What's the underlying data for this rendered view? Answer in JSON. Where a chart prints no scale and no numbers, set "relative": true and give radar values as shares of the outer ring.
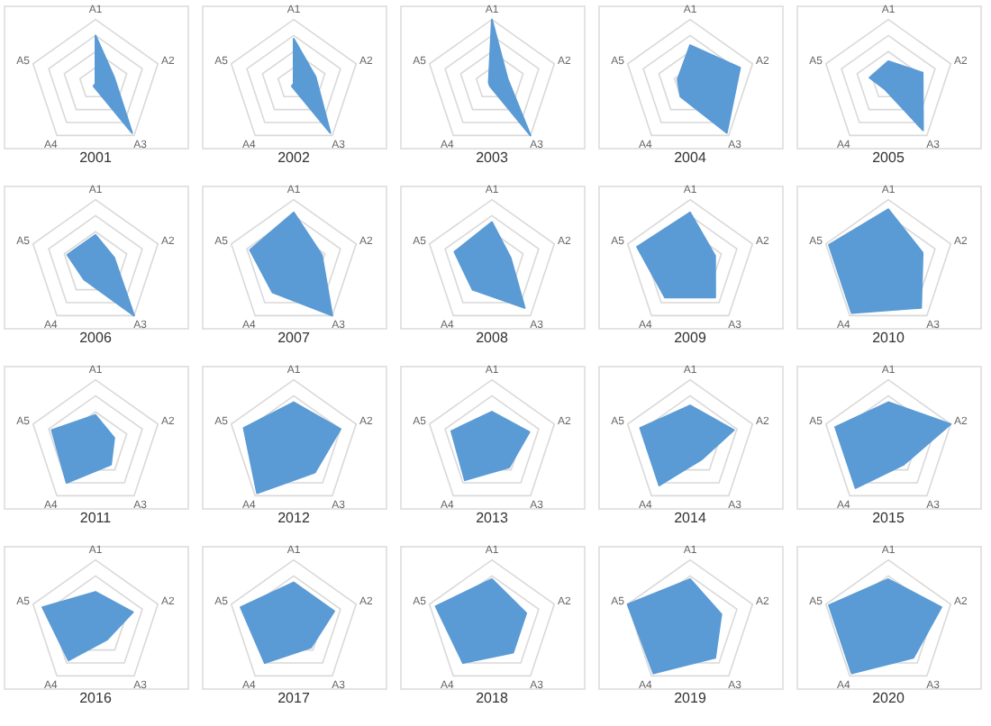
{
  "chart_data": [
    {
      "type": "radar",
      "title": "2001",
      "categories": [
        "A1",
        "A2",
        "A3",
        "A4",
        "A5"
      ],
      "relative": true,
      "grid": true,
      "series": [
        {
          "color": "#5b9bd5",
          "values": [
            0.75,
            0.3,
            0.95,
            0.05,
            0.0
          ]
        }
      ]
    },
    {
      "type": "radar",
      "title": "2002",
      "categories": [
        "A1",
        "A2",
        "A3",
        "A4",
        "A5"
      ],
      "relative": true,
      "grid": true,
      "series": [
        {
          "color": "#5b9bd5",
          "values": [
            0.7,
            0.35,
            0.95,
            0.05,
            0.0
          ]
        }
      ]
    },
    {
      "type": "radar",
      "title": "2003",
      "categories": [
        "A1",
        "A2",
        "A3",
        "A4",
        "A5"
      ],
      "relative": true,
      "grid": true,
      "series": [
        {
          "color": "#5b9bd5",
          "values": [
            1.0,
            0.25,
            1.0,
            0.05,
            0.05
          ]
        }
      ]
    },
    {
      "type": "radar",
      "title": "2004",
      "categories": [
        "A1",
        "A2",
        "A3",
        "A4",
        "A5"
      ],
      "relative": true,
      "grid": true,
      "series": [
        {
          "color": "#5b9bd5",
          "values": [
            0.6,
            0.8,
            0.95,
            0.25,
            0.2
          ]
        }
      ]
    },
    {
      "type": "radar",
      "title": "2005",
      "categories": [
        "A1",
        "A2",
        "A3",
        "A4",
        "A5"
      ],
      "relative": true,
      "grid": true,
      "series": [
        {
          "color": "#5b9bd5",
          "values": [
            0.35,
            0.55,
            0.9,
            0.1,
            0.3
          ]
        }
      ]
    },
    {
      "type": "radar",
      "title": "2006",
      "categories": [
        "A1",
        "A2",
        "A3",
        "A4",
        "A5"
      ],
      "relative": true,
      "grid": true,
      "series": [
        {
          "color": "#5b9bd5",
          "values": [
            0.45,
            0.3,
            1.0,
            0.3,
            0.45
          ]
        }
      ]
    },
    {
      "type": "radar",
      "title": "2007",
      "categories": [
        "A1",
        "A2",
        "A3",
        "A4",
        "A5"
      ],
      "relative": true,
      "grid": true,
      "series": [
        {
          "color": "#5b9bd5",
          "values": [
            0.8,
            0.45,
            1.0,
            0.55,
            0.7
          ]
        }
      ]
    },
    {
      "type": "radar",
      "title": "2008",
      "categories": [
        "A1",
        "A2",
        "A3",
        "A4",
        "A5"
      ],
      "relative": true,
      "grid": true,
      "series": [
        {
          "color": "#5b9bd5",
          "values": [
            0.65,
            0.3,
            0.85,
            0.5,
            0.6
          ]
        }
      ]
    },
    {
      "type": "radar",
      "title": "2009",
      "categories": [
        "A1",
        "A2",
        "A3",
        "A4",
        "A5"
      ],
      "relative": true,
      "grid": true,
      "series": [
        {
          "color": "#5b9bd5",
          "values": [
            0.8,
            0.4,
            0.65,
            0.65,
            0.85
          ]
        }
      ]
    },
    {
      "type": "radar",
      "title": "2010",
      "categories": [
        "A1",
        "A2",
        "A3",
        "A4",
        "A5"
      ],
      "relative": true,
      "grid": true,
      "series": [
        {
          "color": "#5b9bd5",
          "values": [
            0.85,
            0.55,
            0.85,
            0.95,
            0.95
          ]
        }
      ]
    },
    {
      "type": "radar",
      "title": "2011",
      "categories": [
        "A1",
        "A2",
        "A3",
        "A4",
        "A5"
      ],
      "relative": true,
      "grid": true,
      "series": [
        {
          "color": "#5b9bd5",
          "values": [
            0.45,
            0.3,
            0.4,
            0.75,
            0.7
          ]
        }
      ]
    },
    {
      "type": "radar",
      "title": "2012",
      "categories": [
        "A1",
        "A2",
        "A3",
        "A4",
        "A5"
      ],
      "relative": true,
      "grid": true,
      "series": [
        {
          "color": "#5b9bd5",
          "values": [
            0.65,
            0.75,
            0.55,
            0.95,
            0.8
          ]
        }
      ]
    },
    {
      "type": "radar",
      "title": "2013",
      "categories": [
        "A1",
        "A2",
        "A3",
        "A4",
        "A5"
      ],
      "relative": true,
      "grid": true,
      "series": [
        {
          "color": "#5b9bd5",
          "values": [
            0.5,
            0.6,
            0.45,
            0.7,
            0.65
          ]
        }
      ]
    },
    {
      "type": "radar",
      "title": "2014",
      "categories": [
        "A1",
        "A2",
        "A3",
        "A4",
        "A5"
      ],
      "relative": true,
      "grid": true,
      "series": [
        {
          "color": "#5b9bd5",
          "values": [
            0.6,
            0.7,
            0.3,
            0.8,
            0.8
          ]
        }
      ]
    },
    {
      "type": "radar",
      "title": "2015",
      "categories": [
        "A1",
        "A2",
        "A3",
        "A4",
        "A5"
      ],
      "relative": true,
      "grid": true,
      "series": [
        {
          "color": "#5b9bd5",
          "values": [
            0.65,
            1.0,
            0.4,
            0.85,
            0.85
          ]
        }
      ]
    },
    {
      "type": "radar",
      "title": "2016",
      "categories": [
        "A1",
        "A2",
        "A3",
        "A4",
        "A5"
      ],
      "relative": true,
      "grid": true,
      "series": [
        {
          "color": "#5b9bd5",
          "values": [
            0.5,
            0.6,
            0.3,
            0.7,
            0.85
          ]
        }
      ]
    },
    {
      "type": "radar",
      "title": "2017",
      "categories": [
        "A1",
        "A2",
        "A3",
        "A4",
        "A5"
      ],
      "relative": true,
      "grid": true,
      "series": [
        {
          "color": "#5b9bd5",
          "values": [
            0.65,
            0.65,
            0.45,
            0.75,
            0.85
          ]
        }
      ]
    },
    {
      "type": "radar",
      "title": "2018",
      "categories": [
        "A1",
        "A2",
        "A3",
        "A4",
        "A5"
      ],
      "relative": true,
      "grid": true,
      "series": [
        {
          "color": "#5b9bd5",
          "values": [
            0.7,
            0.55,
            0.55,
            0.75,
            0.9
          ]
        }
      ]
    },
    {
      "type": "radar",
      "title": "2019",
      "categories": [
        "A1",
        "A2",
        "A3",
        "A4",
        "A5"
      ],
      "relative": true,
      "grid": true,
      "series": [
        {
          "color": "#5b9bd5",
          "values": [
            0.7,
            0.5,
            0.65,
            0.95,
            1.0
          ]
        }
      ]
    },
    {
      "type": "radar",
      "title": "2020",
      "categories": [
        "A1",
        "A2",
        "A3",
        "A4",
        "A5"
      ],
      "relative": true,
      "grid": true,
      "series": [
        {
          "color": "#5b9bd5",
          "values": [
            0.7,
            0.85,
            0.65,
            0.95,
            0.95
          ]
        }
      ]
    }
  ]
}
